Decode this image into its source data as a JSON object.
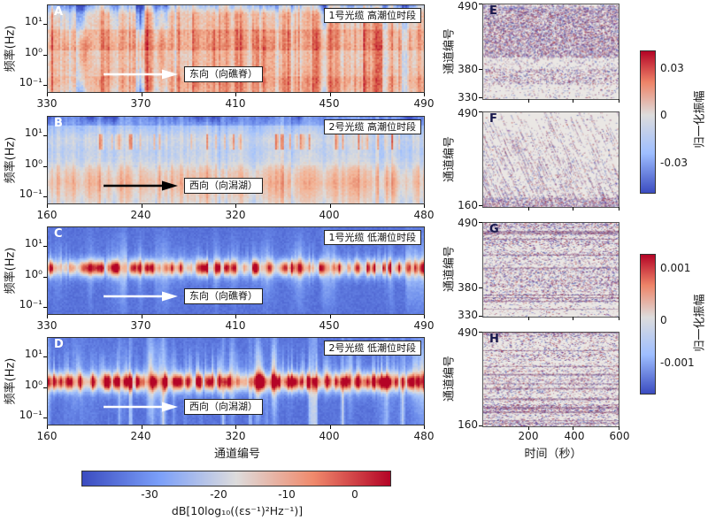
{
  "chart_data": {
    "type": "heatmap",
    "layout": "left column: 4 DAS power-spectral-density spectrograms (A-D) sharing channel-number x axis; right column: 4 strain-rate waterfall panels (E-H) sharing time x axis; one horizontal dB colorbar bottom-left, two vertical normalized-amplitude colorbars right",
    "colormap": "coolwarm",
    "spectrograms": [
      {
        "label": "A",
        "title": "1号光缆 高潮位时段",
        "ylabel": "频率(Hz)",
        "y_ticks": [
          "10¹",
          "10⁰",
          "10⁻¹"
        ],
        "x_ticks": [
          "330",
          "370",
          "410",
          "450",
          "490"
        ],
        "x_range": [
          330,
          490
        ],
        "y_range_hz": [
          0.05,
          30
        ],
        "annotation": "东向（向礁脊）",
        "arrow_color": "#ffffff",
        "summary": "broadband warm (red) energy across all frequencies; quieter blue vertical stripes over left third of channels",
        "texture": {
          "kind": "warm-broadband",
          "seed": 11
        }
      },
      {
        "label": "B",
        "title": "2号光缆 高潮位时段",
        "ylabel": "频率(Hz)",
        "y_ticks": [
          "10¹",
          "10⁰",
          "10⁻¹"
        ],
        "x_ticks": [
          "160",
          "240",
          "320",
          "400",
          "480"
        ],
        "x_range": [
          160,
          480
        ],
        "y_range_hz": [
          0.05,
          30
        ],
        "annotation": "西向（向潟湖）",
        "arrow_color": "#000000",
        "summary": "mostly cool/light background; warm band below ~0.5 Hz and scattered warm patches near 2-4 Hz",
        "texture": {
          "kind": "cool-layered",
          "seed": 22
        }
      },
      {
        "label": "C",
        "title": "1号光缆 低潮位时段",
        "ylabel": "频率(Hz)",
        "y_ticks": [
          "10¹",
          "10⁰",
          "10⁻¹"
        ],
        "x_ticks": [
          "330",
          "370",
          "410",
          "450",
          "490"
        ],
        "x_range": [
          330,
          490
        ],
        "y_range_hz": [
          0.05,
          30
        ],
        "annotation": "东向（向礁脊）",
        "arrow_color": "#ffffff",
        "summary": "quiet deep-blue background with a narrow energetic white/orange band near 1-3 Hz and faint vertical flares",
        "texture": {
          "kind": "blue-band",
          "seed": 33
        }
      },
      {
        "label": "D",
        "title": "2号光缆 低潮位时段",
        "ylabel": "频率(Hz)",
        "y_ticks": [
          "10¹",
          "10⁰",
          "10⁻¹"
        ],
        "x_ticks": [
          "160",
          "240",
          "320",
          "400",
          "480"
        ],
        "x_range": [
          160,
          480
        ],
        "y_range_hz": [
          0.05,
          30
        ],
        "annotation": "西向（向潟湖）",
        "arrow_color": "#ffffff",
        "summary": "quiet deep-blue background with a strong red-spotted 1-2 Hz band and vertical flares reaching low frequencies",
        "texture": {
          "kind": "blue-band-strong",
          "seed": 44
        }
      }
    ],
    "shared_xlabel": "通道编号",
    "spec_colorbar": {
      "ticks": [
        "-30",
        "-20",
        "-10",
        "0"
      ],
      "range_db": [
        -40,
        5
      ],
      "label": "dB[10log₁₀((εs⁻¹)²Hz⁻¹)]"
    },
    "waterfalls": [
      {
        "label": "E",
        "ylabel": "通道编号",
        "y_ticks": [
          "490",
          "380",
          "330"
        ],
        "y_range": [
          330,
          490
        ],
        "summary": "dense red/blue/purple strain-rate speckle over upper two-thirds of channels, sparse below",
        "texture": {
          "kind": "speckle-dense-top",
          "seed": 55
        }
      },
      {
        "label": "F",
        "ylabel": "通道编号",
        "y_ticks": [
          "490",
          "160"
        ],
        "y_range": [
          160,
          490
        ],
        "summary": "sparser speckle with steep diagonal propagating streaks, denser toward low channels",
        "texture": {
          "kind": "diagonal-streaks",
          "seed": 66
        }
      },
      {
        "label": "G",
        "ylabel": "通道编号",
        "y_ticks": [
          "490",
          "380",
          "330"
        ],
        "y_range": [
          330,
          490
        ],
        "summary": "dense horizontal banding across nearly all channels, lighter near bottom",
        "texture": {
          "kind": "stripes-dense",
          "seed": 77
        }
      },
      {
        "label": "H",
        "ylabel": "通道编号",
        "y_ticks": [
          "490",
          "160"
        ],
        "y_range": [
          160,
          490
        ],
        "x_ticks": [
          "200",
          "400",
          "600"
        ],
        "x_range_s": [
          0,
          600
        ],
        "xlabel": "时间（秒）",
        "summary": "horizontal banding with a strong dark band near low channel numbers",
        "texture": {
          "kind": "stripes-band",
          "seed": 88
        }
      }
    ],
    "wf_colorbar_top": {
      "ticks": [
        "0.03",
        "0",
        "-0.03"
      ],
      "label": "归一化振幅"
    },
    "wf_colorbar_bottom": {
      "ticks": [
        "0.001",
        "0",
        "-0.001"
      ],
      "label": "归一化振幅"
    }
  }
}
